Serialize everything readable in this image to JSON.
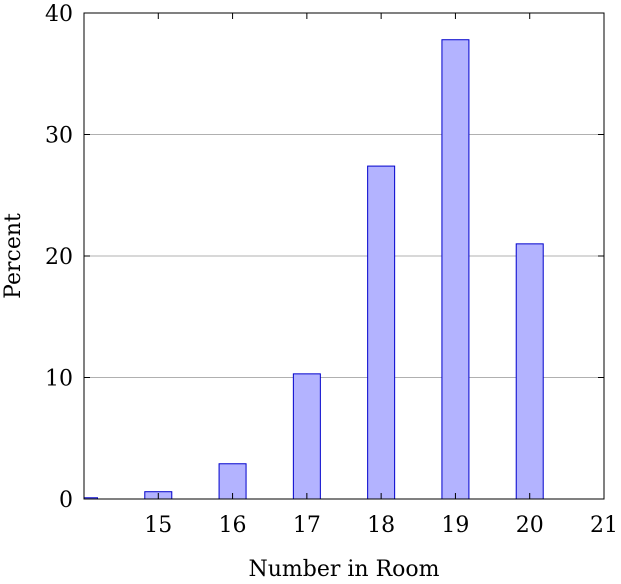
{
  "chart_data": {
    "type": "bar",
    "title": "",
    "xlabel": "Number in Room",
    "ylabel": "Percent",
    "x": [
      14,
      15,
      16,
      17,
      18,
      19,
      20
    ],
    "values": [
      0.1,
      0.6,
      2.9,
      10.3,
      27.4,
      37.8,
      21.0
    ],
    "xlim": [
      14,
      21
    ],
    "ylim": [
      0,
      40
    ],
    "xticks": [
      15,
      16,
      17,
      18,
      19,
      20,
      21
    ],
    "xtick_labels": [
      "15",
      "16",
      "17",
      "18",
      "19",
      "20",
      "21"
    ],
    "yticks": [
      0,
      10,
      20,
      30,
      40
    ],
    "ytick_labels": [
      "0",
      "10",
      "20",
      "30",
      "40"
    ],
    "grid": "horizontal",
    "legend": "none",
    "colors": {
      "bar_fill": "#b3b3ff",
      "bar_stroke": "#0000cc",
      "grid": "#b0b0b0",
      "axis": "#000000"
    }
  }
}
